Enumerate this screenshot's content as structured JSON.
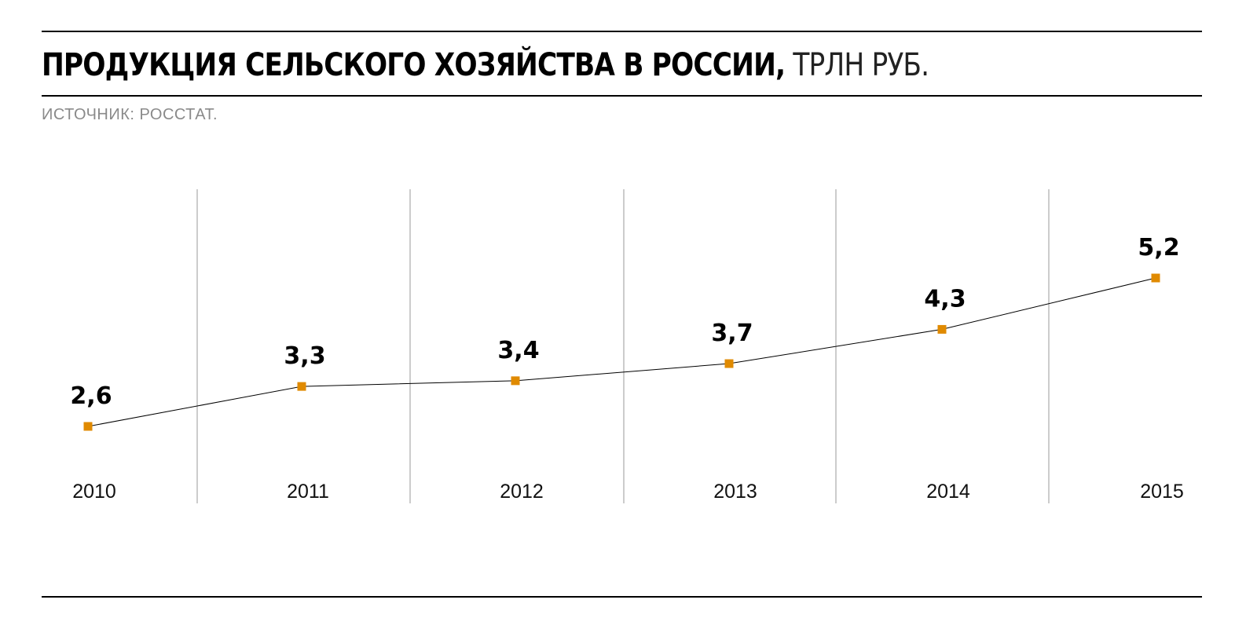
{
  "header": {
    "title_main": "ПРОДУКЦИЯ СЕЛЬСКОГО ХОЗЯЙСТВА В РОССИИ,",
    "title_unit": " ТРЛН РУБ.",
    "source": "ИСТОЧНИК: РОССТАТ."
  },
  "colors": {
    "marker": "#E08A00",
    "line": "#000000",
    "grid": "#999999",
    "rules": "#000000"
  },
  "chart_data": {
    "type": "line",
    "title": "ПРОДУКЦИЯ СЕЛЬСКОГО ХОЗЯЙСТВА В РОССИИ, ТРЛН РУБ.",
    "categories": [
      "2010",
      "2011",
      "2012",
      "2013",
      "2014",
      "2015"
    ],
    "values": [
      2.6,
      3.3,
      3.4,
      3.7,
      4.3,
      5.2
    ],
    "value_labels": [
      "2,6",
      "3,3",
      "3,4",
      "3,7",
      "4,3",
      "5,2"
    ],
    "xlabel": "",
    "ylabel": "",
    "grid": "vertical",
    "legend": "none"
  }
}
